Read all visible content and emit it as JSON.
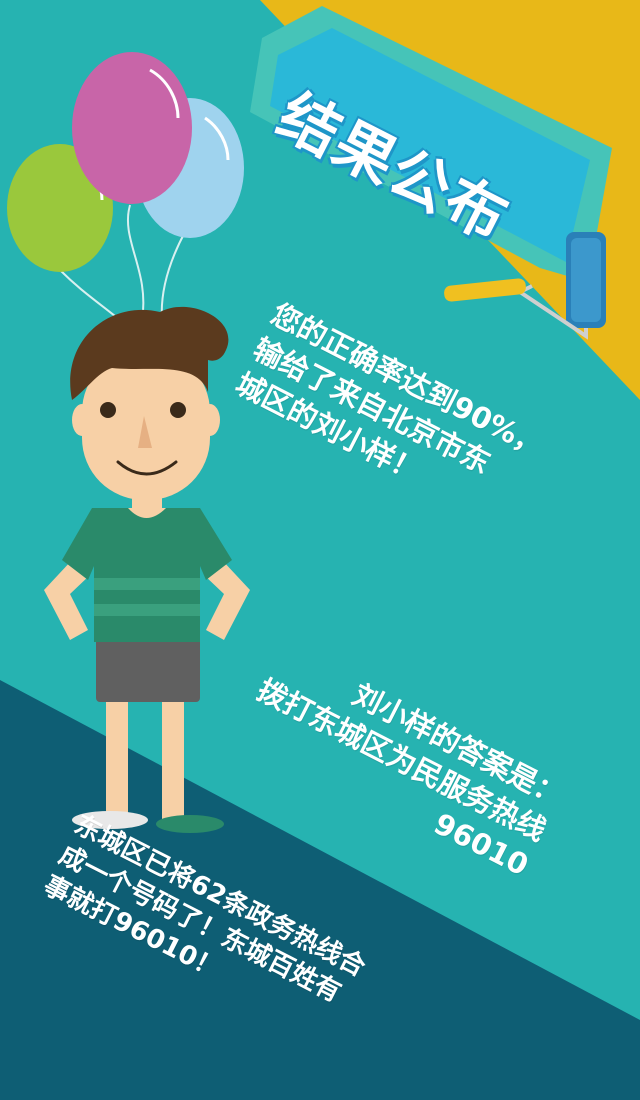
{
  "banner": {
    "title": "结果公布"
  },
  "result_text": {
    "lines": [
      "您的正确率达到90%，",
      "输给了来自北京市东",
      "城区的刘小样！"
    ]
  },
  "answer_text": {
    "lines": [
      "刘小样的答案是：",
      "拨打东城区为民服务热线",
      "96010"
    ]
  },
  "notice_text": {
    "lines": [
      "东城区已将62条政务热线合",
      "成一个号码了！东城百姓有",
      "事就打96010！"
    ]
  },
  "colors": {
    "teal": "#26b3b1",
    "yellow": "#e8b818",
    "navy": "#0e5e74",
    "banner_cyan": "#2ab8d8",
    "balloon_pink": "#c865a8",
    "balloon_blue": "#9fd3ee",
    "balloon_green": "#9ac83c",
    "shirt_green": "#2a8a6a",
    "shorts_gray": "#606060",
    "skin": "#f7d0a6",
    "hair": "#5b3a1e"
  }
}
